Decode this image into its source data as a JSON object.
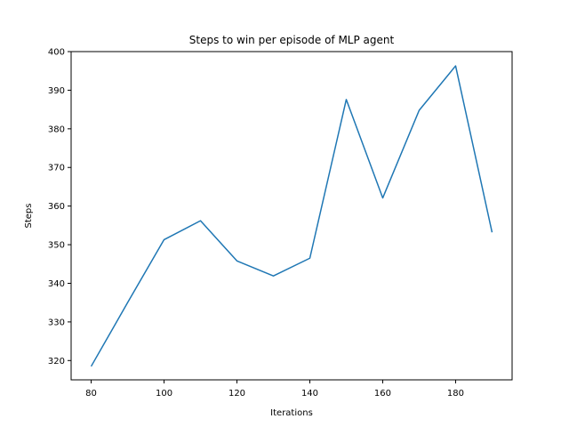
{
  "chart_data": {
    "type": "line",
    "title": "Steps to win per episode of MLP agent",
    "xlabel": "Iterations",
    "ylabel": "Steps",
    "xlim": [
      74.5,
      195.5
    ],
    "ylim": [
      315,
      400
    ],
    "xticks": [
      80,
      100,
      120,
      140,
      160,
      180
    ],
    "yticks": [
      320,
      330,
      340,
      350,
      360,
      370,
      380,
      390,
      400
    ],
    "grid": false,
    "series": [
      {
        "color": "#1f77b4",
        "x": [
          80,
          90,
          100,
          110,
          120,
          130,
          140,
          150,
          160,
          170,
          180,
          190
        ],
        "y": [
          318.5,
          335.0,
          351.3,
          356.2,
          345.8,
          341.9,
          346.5,
          387.6,
          362.1,
          384.8,
          396.3,
          353.2
        ]
      }
    ]
  }
}
